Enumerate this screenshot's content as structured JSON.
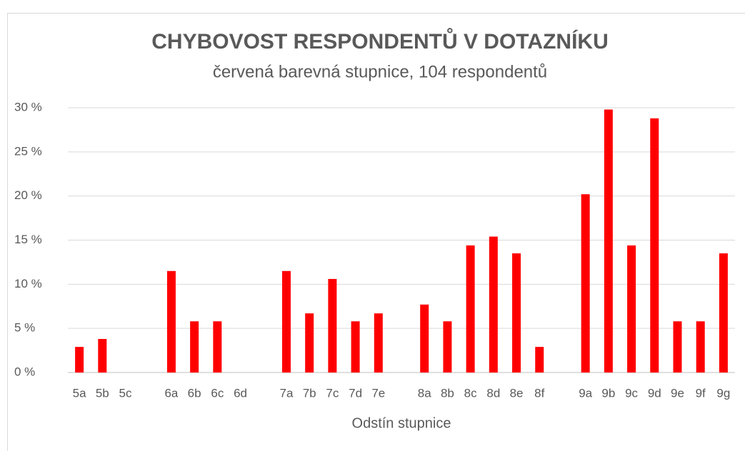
{
  "chart_data": {
    "type": "bar",
    "title": "CHYBOVOST RESPONDENTŮ V DOTAZNÍKU",
    "subtitle": "červená barevná stupnice, 104 respondentů",
    "x_label": "Odstín stupnice",
    "categories": [
      "5a",
      "5b",
      "5c",
      null,
      "6a",
      "6b",
      "6c",
      "6d",
      null,
      "7a",
      "7b",
      "7c",
      "7d",
      "7e",
      null,
      "8a",
      "8b",
      "8c",
      "8d",
      "8e",
      "8f",
      null,
      "9a",
      "9b",
      "9c",
      "9d",
      "9e",
      "9f",
      "9g"
    ],
    "values": [
      2.9,
      3.8,
      0,
      null,
      11.5,
      5.8,
      5.8,
      0,
      null,
      11.5,
      6.7,
      10.6,
      5.8,
      6.7,
      null,
      7.7,
      5.8,
      14.4,
      15.4,
      13.5,
      2.9,
      null,
      20.2,
      29.8,
      14.4,
      28.8,
      5.8,
      5.8,
      13.5
    ],
    "color": "#ff0000",
    "ylim": [
      0,
      30
    ],
    "yticks": [
      {
        "value": 0,
        "label": "0 %"
      },
      {
        "value": 5,
        "label": "5 %"
      },
      {
        "value": 10,
        "label": "10 %"
      },
      {
        "value": 15,
        "label": "15 %"
      },
      {
        "value": 20,
        "label": "20 %"
      },
      {
        "value": 25,
        "label": "25 %"
      },
      {
        "value": 30,
        "label": "30 %"
      }
    ],
    "grid": true
  }
}
